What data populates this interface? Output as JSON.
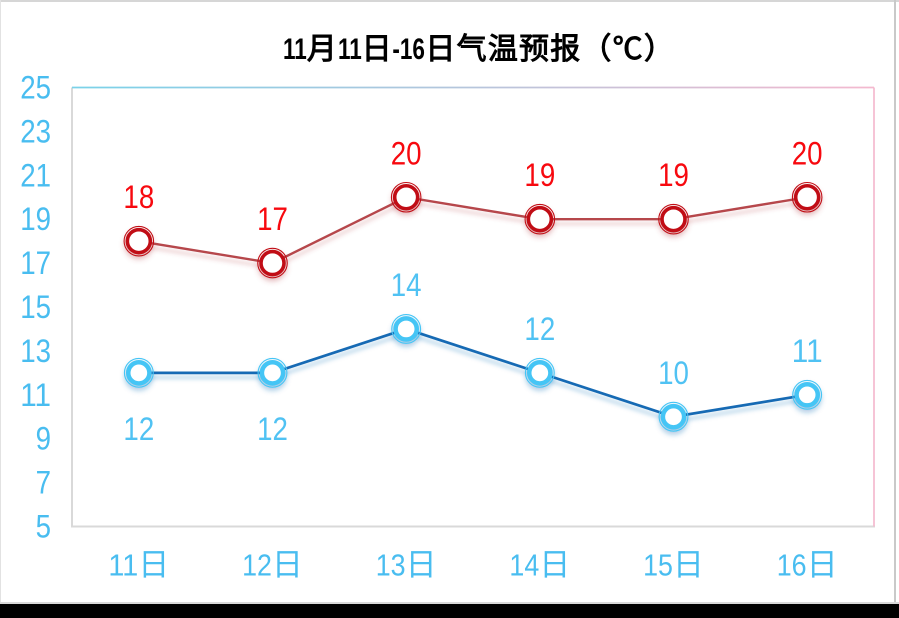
{
  "chart_data": {
    "type": "line",
    "title": "11月11日-16日气温预报（℃）",
    "categories": [
      "11日",
      "12日",
      "13日",
      "14日",
      "15日",
      "16日"
    ],
    "series": [
      {
        "id": "high-temperature",
        "values": [
          18,
          17,
          20,
          19,
          19,
          20
        ],
        "line_color": "#b6464c",
        "marker_color": "#c10e14",
        "label_color": "#f7090f",
        "label_positions": [
          "above",
          "above",
          "above",
          "above",
          "above",
          "above"
        ]
      },
      {
        "id": "low-temperature",
        "values": [
          12,
          12,
          14,
          12,
          10,
          11
        ],
        "line_color": "#186bb4",
        "marker_color": "#44c5f5",
        "label_color": "#50c2f3",
        "label_positions": [
          "below",
          "below",
          "above",
          "above",
          "above",
          "above"
        ]
      }
    ],
    "xlabel": "",
    "ylabel": "",
    "ylim": [
      5,
      25
    ],
    "ytick_step": 2,
    "yticks": [
      5,
      7,
      9,
      11,
      13,
      15,
      17,
      19,
      21,
      23,
      25
    ],
    "grid": false,
    "legend": false,
    "axis_label_color": "#49bdf0",
    "plot_border": {
      "left_color": "#d9d9d9",
      "bottom_color": "#d9d9d9",
      "top_gradient": [
        "#7ad2e9",
        "#f4b9cf"
      ],
      "right_color": "#f4b9cf"
    }
  }
}
